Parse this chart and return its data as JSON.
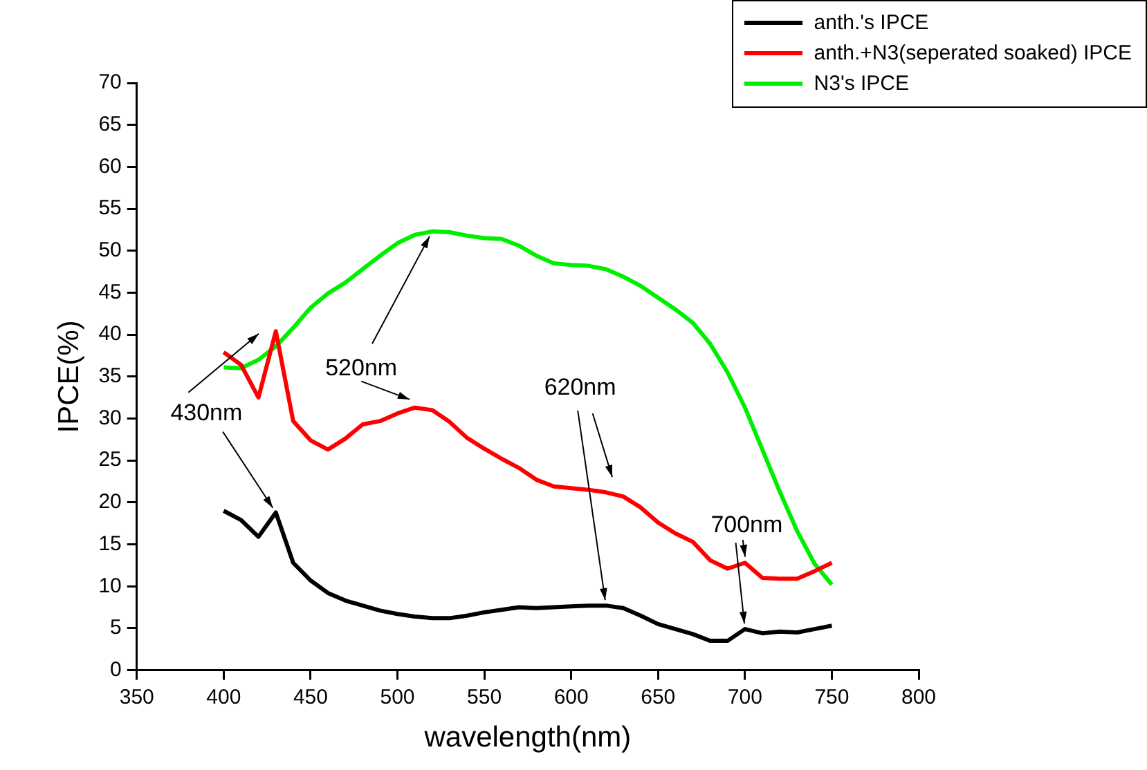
{
  "chart_data": {
    "type": "line",
    "xlabel": "wavelength(nm)",
    "ylabel": "IPCE(%)",
    "x": [
      400,
      410,
      420,
      430,
      440,
      450,
      460,
      470,
      480,
      490,
      500,
      510,
      520,
      530,
      540,
      550,
      560,
      570,
      580,
      590,
      600,
      610,
      620,
      630,
      640,
      650,
      660,
      670,
      680,
      690,
      700,
      710,
      720,
      730,
      740,
      750
    ],
    "series": [
      {
        "name": "anth.'s IPCE",
        "color": "#000000",
        "values": [
          19.0,
          17.9,
          15.9,
          18.8,
          12.8,
          10.7,
          9.2,
          8.3,
          7.7,
          7.1,
          6.7,
          6.4,
          6.2,
          6.2,
          6.5,
          6.9,
          7.2,
          7.5,
          7.4,
          7.5,
          7.6,
          7.7,
          7.7,
          7.4,
          6.5,
          5.5,
          4.9,
          4.3,
          3.5,
          3.5,
          4.9,
          4.4,
          4.6,
          4.5,
          4.9,
          5.3
        ]
      },
      {
        "name": "anth.+N3(seperated soaked) IPCE",
        "color": "#ff0000",
        "values": [
          37.9,
          36.4,
          32.5,
          40.4,
          29.7,
          27.4,
          26.3,
          27.6,
          29.3,
          29.7,
          30.6,
          31.3,
          31.0,
          29.6,
          27.7,
          26.4,
          25.2,
          24.1,
          22.7,
          21.9,
          21.7,
          21.5,
          21.2,
          20.7,
          19.4,
          17.6,
          16.3,
          15.3,
          13.1,
          12.1,
          12.8,
          11.0,
          10.9,
          10.9,
          11.8,
          12.8
        ]
      },
      {
        "name": "N3's IPCE",
        "color": "#00ee00",
        "values": [
          36.1,
          36.0,
          37.0,
          38.6,
          40.8,
          43.2,
          44.9,
          46.2,
          47.8,
          49.4,
          50.9,
          51.9,
          52.3,
          52.2,
          51.8,
          51.5,
          51.4,
          50.6,
          49.4,
          48.5,
          48.3,
          48.2,
          47.8,
          46.9,
          45.8,
          44.4,
          43.0,
          41.4,
          38.9,
          35.5,
          31.3,
          26.3,
          21.3,
          16.6,
          12.7,
          10.2
        ]
      }
    ],
    "xlim": [
      350,
      800
    ],
    "xticks": [
      350,
      400,
      450,
      500,
      550,
      600,
      650,
      700,
      750,
      800
    ],
    "ylim": [
      0,
      70
    ],
    "yticks": [
      0,
      5,
      10,
      15,
      20,
      25,
      30,
      35,
      40,
      45,
      50,
      55,
      60,
      65,
      70
    ],
    "grid": false,
    "legend": "top right",
    "marker": "none",
    "line_style": "solid",
    "annotations": [
      {
        "text": "430nm",
        "x": 430,
        "y": 18.8
      },
      {
        "text": "520nm",
        "x": 520,
        "y": 52.3
      },
      {
        "text": "620nm",
        "x": 620,
        "y": 7.7
      },
      {
        "text": "700nm",
        "x": 700,
        "y": 4.9
      }
    ]
  }
}
